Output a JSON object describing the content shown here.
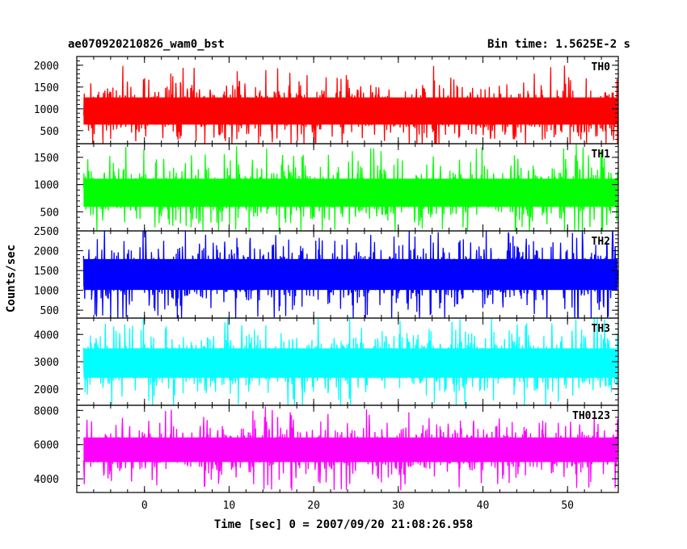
{
  "header": {
    "title": "ae070920210826_wam0_bst",
    "bin_time": "Bin time: 1.5625E-2 s"
  },
  "chart_data": {
    "type": "line",
    "x": {
      "label": "Time [sec] 0 = 2007/09/20 21:08:26.958",
      "range": [
        -8,
        56
      ],
      "ticks": [
        0,
        10,
        20,
        30,
        40,
        50
      ],
      "tick_labels": [
        "0",
        "10",
        "20",
        "30",
        "40",
        "50"
      ]
    },
    "ylabel": "Counts/sec",
    "series": [
      {
        "name": "TH0",
        "color": "#ff0000",
        "ylim": [
          200,
          2200
        ],
        "y_ticks": [
          500,
          1000,
          1500,
          2000
        ],
        "y_tick_labels": [
          "500",
          "1000",
          "1500",
          "2000"
        ],
        "mean": 950,
        "spread": 520,
        "max": 2250,
        "min": 120
      },
      {
        "name": "TH1",
        "color": "#00ff00",
        "ylim": [
          150,
          1750
        ],
        "y_ticks": [
          500,
          1000,
          1500
        ],
        "y_tick_labels": [
          "500",
          "1000",
          "1500"
        ],
        "mean": 850,
        "spread": 430,
        "max": 1850,
        "min": 120
      },
      {
        "name": "TH2",
        "color": "#0000ff",
        "ylim": [
          300,
          2500
        ],
        "y_ticks": [
          500,
          1000,
          1500,
          2000,
          2500
        ],
        "y_tick_labels": [
          "500",
          "1000",
          "1500",
          "2000",
          "2500"
        ],
        "mean": 1400,
        "spread": 650,
        "max": 2500,
        "min": 300
      },
      {
        "name": "TH3",
        "color": "#00ffff",
        "ylim": [
          1400,
          4600
        ],
        "y_ticks": [
          2000,
          3000,
          4000
        ],
        "y_tick_labels": [
          "2000",
          "3000",
          "4000"
        ],
        "mean": 2950,
        "spread": 900,
        "max": 4600,
        "min": 1400
      },
      {
        "name": "TH0123",
        "color": "#ff00ff",
        "ylim": [
          3200,
          8300
        ],
        "y_ticks": [
          4000,
          6000,
          8000
        ],
        "y_tick_labels": [
          "4000",
          "6000",
          "8000"
        ],
        "mean": 5700,
        "spread": 1200,
        "max": 8300,
        "min": 3300
      }
    ]
  }
}
